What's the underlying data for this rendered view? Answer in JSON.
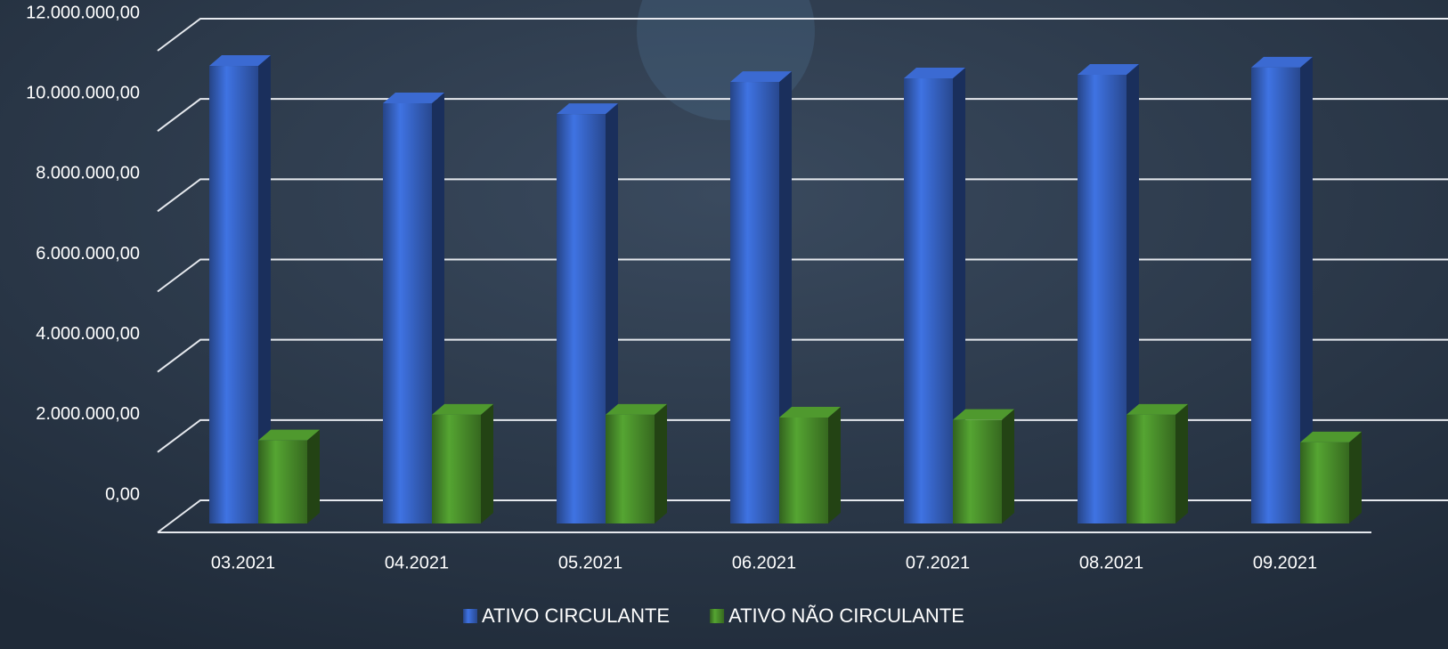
{
  "chart_data": {
    "type": "bar3d",
    "categories": [
      "03.2021",
      "04.2021",
      "05.2021",
      "06.2021",
      "07.2021",
      "08.2021",
      "09.2021"
    ],
    "series": [
      {
        "name": "ATIVO CIRCULANTE",
        "color": "#2f55a8",
        "values": [
          11400000,
          10470000,
          10200000,
          11000000,
          11090000,
          11180000,
          11360000
        ]
      },
      {
        "name": "ATIVO NÃO CIRCULANTE",
        "color": "#3f7a25",
        "values": [
          2070000,
          2710000,
          2710000,
          2640000,
          2580000,
          2710000,
          2020000
        ]
      }
    ],
    "ylim": [
      0,
      12000000
    ],
    "yticks": [
      {
        "value": 0,
        "label": "0,00"
      },
      {
        "value": 2000000,
        "label": "2.000.000,00"
      },
      {
        "value": 4000000,
        "label": "4.000.000,00"
      },
      {
        "value": 6000000,
        "label": "6.000.000,00"
      },
      {
        "value": 8000000,
        "label": "8.000.000,00"
      },
      {
        "value": 10000000,
        "label": "10.000.000,00"
      },
      {
        "value": 12000000,
        "label": "12.000.000,00"
      }
    ],
    "grid": true,
    "legend": "bottom"
  }
}
